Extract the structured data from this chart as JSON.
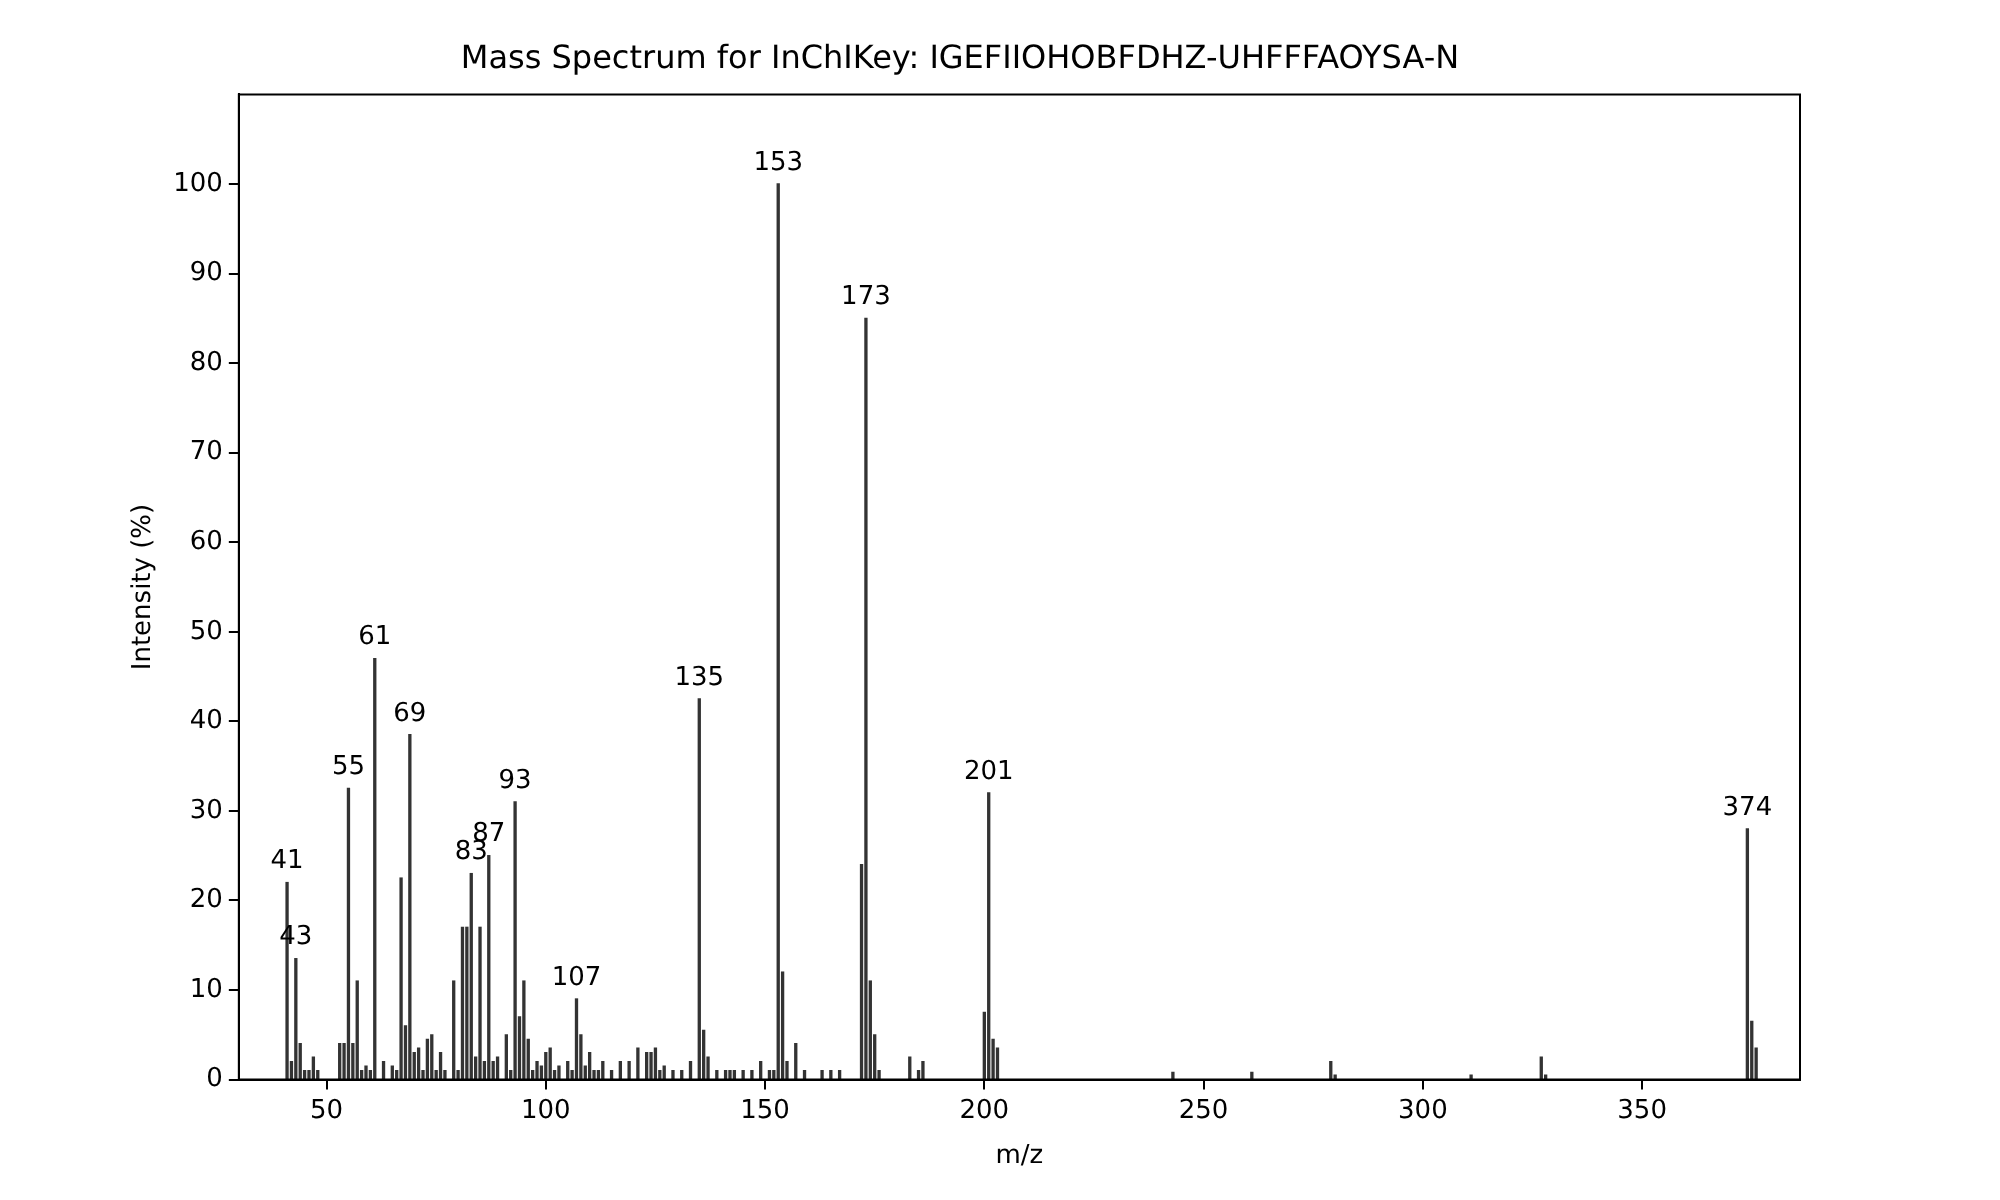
{
  "chart_data": {
    "type": "bar",
    "title": "Mass Spectrum for InChIKey: IGEFIIOHOBFDHZ-UHFFFAOYSA-N",
    "xlabel": "m/z",
    "ylabel": "Intensity (%)",
    "x": [
      41,
      42,
      43,
      44,
      45,
      46,
      47,
      48,
      53,
      54,
      55,
      56,
      57,
      58,
      59,
      60,
      61,
      63,
      65,
      66,
      67,
      68,
      69,
      70,
      71,
      72,
      73,
      74,
      75,
      76,
      77,
      79,
      80,
      81,
      82,
      83,
      84,
      85,
      86,
      87,
      88,
      89,
      91,
      92,
      93,
      94,
      95,
      96,
      97,
      98,
      99,
      100,
      101,
      102,
      103,
      105,
      106,
      107,
      108,
      109,
      110,
      111,
      112,
      113,
      115,
      117,
      119,
      121,
      123,
      124,
      125,
      126,
      127,
      129,
      131,
      133,
      135,
      136,
      137,
      139,
      141,
      142,
      143,
      145,
      147,
      149,
      151,
      152,
      153,
      154,
      155,
      157,
      159,
      163,
      165,
      167,
      172,
      173,
      174,
      175,
      176,
      183,
      185,
      186,
      200,
      201,
      202,
      203,
      243,
      261,
      279,
      280,
      311,
      327,
      328,
      374,
      375,
      376
    ],
    "values": [
      22,
      2,
      13.5,
      4,
      1,
      1,
      2.5,
      1,
      4,
      4,
      32.5,
      4,
      11,
      1,
      1.5,
      1,
      47,
      2,
      1.5,
      1,
      22.5,
      6,
      38.5,
      3,
      3.5,
      1,
      4.5,
      5,
      1,
      3,
      1,
      11,
      1,
      17,
      17,
      23,
      2.5,
      17,
      2,
      25,
      2,
      2.5,
      5,
      1,
      31,
      7,
      11,
      4.5,
      1,
      2,
      1.5,
      3,
      3.5,
      1,
      1.5,
      2,
      1,
      9,
      5,
      1.5,
      3,
      1,
      1,
      2,
      1,
      2,
      2,
      3.5,
      3,
      3,
      3.5,
      1,
      1.5,
      1,
      1,
      2,
      42.5,
      5.5,
      2.5,
      1,
      1,
      1,
      1,
      1,
      1,
      2,
      1,
      1,
      100,
      12,
      2,
      4,
      1,
      1,
      1,
      1,
      24,
      85,
      11,
      5,
      1,
      2.5,
      1,
      2,
      7.5,
      32,
      4.5,
      3.5,
      0.8,
      0.8,
      2,
      0.5,
      0.5,
      2.5,
      0.5,
      28,
      6.5,
      3.5
    ],
    "color": "#333333",
    "xlim": [
      30,
      386
    ],
    "xticks": [
      50,
      100,
      150,
      200,
      250,
      300,
      350
    ],
    "ylim": [
      0,
      110
    ],
    "yticks": [
      0,
      10,
      20,
      30,
      40,
      50,
      60,
      70,
      80,
      90,
      100
    ],
    "annotations": [
      {
        "text": "41",
        "x": 41,
        "y": 22
      },
      {
        "text": "43",
        "x": 43,
        "y": 13.5
      },
      {
        "text": "55",
        "x": 55,
        "y": 32.5
      },
      {
        "text": "61",
        "x": 61,
        "y": 47
      },
      {
        "text": "69",
        "x": 69,
        "y": 38.5
      },
      {
        "text": "83",
        "x": 83,
        "y": 23
      },
      {
        "text": "87",
        "x": 87,
        "y": 25
      },
      {
        "text": "93",
        "x": 93,
        "y": 31
      },
      {
        "text": "107",
        "x": 107,
        "y": 9
      },
      {
        "text": "135",
        "x": 135,
        "y": 42.5
      },
      {
        "text": "153",
        "x": 153,
        "y": 100
      },
      {
        "text": "173",
        "x": 173,
        "y": 85
      },
      {
        "text": "201",
        "x": 201,
        "y": 32
      },
      {
        "text": "374",
        "x": 374,
        "y": 28
      }
    ]
  }
}
